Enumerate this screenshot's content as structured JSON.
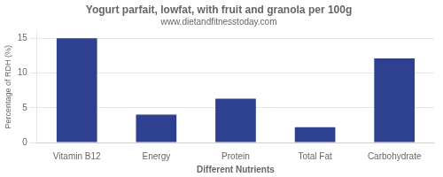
{
  "chart_data": {
    "type": "bar",
    "title": "Yogurt parfait, lowfat, with fruit and granola per 100g",
    "subtitle": "www.dietandfitnesstoday.com",
    "categories": [
      "Vitamin B12",
      "Energy",
      "Protein",
      "Total Fat",
      "Carbohydrate"
    ],
    "values": [
      15,
      4,
      6.3,
      2.2,
      12.1
    ],
    "color": "#2e4090",
    "xlabel": "Different Nutrients",
    "ylabel": "Percentage of RDH (%)",
    "ylim": [
      0,
      16
    ],
    "yticks": [
      0,
      5,
      10,
      15
    ],
    "grid": true
  }
}
